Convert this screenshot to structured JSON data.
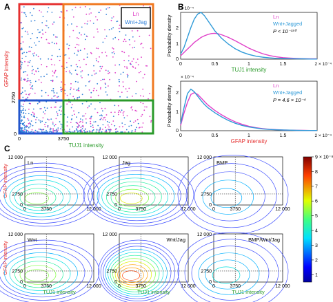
{
  "chart_data": [
    {
      "panel": "A",
      "type": "scatter",
      "xlabel": "TUJ1 intensity",
      "ylabel": "GFAP intensity",
      "xticks": [
        "0",
        "3750"
      ],
      "yticks": [
        "0",
        "2750"
      ],
      "legend": [
        "Ln",
        "Wnt+Jag"
      ],
      "legend_position": "top-right",
      "series_colors": {
        "Ln": "#e040c8",
        "Wnt+Jag": "#2e7fd8"
      },
      "gates": {
        "x": 3750,
        "y": 2750
      },
      "gate_colors": [
        "#e53030",
        "#f07820",
        "#2255cc",
        "#2a9a2a"
      ]
    },
    {
      "panel": "B",
      "type": "line",
      "xlabel": "TUJ1 intensity",
      "ylabel": "Probability density",
      "x_multiplier": "2 × 10⁻⁴",
      "y_multiplier": "× 10⁻⁴",
      "xticks": [
        "0",
        "0.5",
        "1",
        "1.5"
      ],
      "yticks": [
        "0",
        "1",
        "2"
      ],
      "ylim": [
        0,
        2.8
      ],
      "legend": [
        "Ln",
        "Wnt+Jagged"
      ],
      "pvalue": "P < 10⁻³³⁰",
      "series": [
        {
          "name": "Ln",
          "color": "#e040c8",
          "x": [
            0,
            0.05,
            0.1,
            0.15,
            0.2,
            0.25,
            0.3,
            0.35,
            0.4,
            0.45,
            0.5,
            0.55,
            0.6,
            0.7,
            0.8,
            0.9,
            1.0,
            1.1,
            1.2,
            1.3,
            1.4,
            1.5,
            1.6,
            1.7,
            1.8,
            1.9,
            2.0
          ],
          "values": [
            0.2,
            0.4,
            0.6,
            0.8,
            1.0,
            1.15,
            1.3,
            1.4,
            1.48,
            1.53,
            1.55,
            1.52,
            1.46,
            1.3,
            1.1,
            0.88,
            0.66,
            0.48,
            0.33,
            0.22,
            0.14,
            0.09,
            0.06,
            0.04,
            0.03,
            0.02,
            0.02
          ]
        },
        {
          "name": "Wnt+Jagged",
          "color": "#2e9ad8",
          "x": [
            0,
            0.05,
            0.1,
            0.15,
            0.2,
            0.25,
            0.3,
            0.35,
            0.4,
            0.45,
            0.5,
            0.6,
            0.7,
            0.8,
            0.9,
            1.0,
            1.1,
            1.2,
            1.3,
            1.4,
            1.5,
            1.6,
            1.7,
            1.8,
            1.9,
            2.0
          ],
          "values": [
            0.3,
            0.7,
            1.3,
            1.9,
            2.4,
            2.7,
            2.8,
            2.6,
            2.3,
            2.0,
            1.7,
            1.25,
            0.9,
            0.62,
            0.42,
            0.28,
            0.18,
            0.12,
            0.08,
            0.05,
            0.04,
            0.03,
            0.02,
            0.02,
            0.01,
            0.01
          ]
        }
      ]
    },
    {
      "panel": "B",
      "type": "line",
      "xlabel": "GFAP intensity",
      "ylabel": "Probability density",
      "x_multiplier": "2 × 10⁻⁴",
      "y_multiplier": "× 10⁻⁴",
      "xticks": [
        "0",
        "0.5",
        "1",
        "1.5"
      ],
      "yticks": [
        "0",
        "1",
        "2"
      ],
      "ylim": [
        0,
        2.6
      ],
      "legend": [
        "Ln",
        "Wnt+Jagged"
      ],
      "pvalue": "P = 4.6 × 10⁻⁴",
      "series": [
        {
          "name": "Ln",
          "color": "#e040c8",
          "x": [
            0,
            0.05,
            0.1,
            0.15,
            0.2,
            0.25,
            0.3,
            0.35,
            0.4,
            0.5,
            0.6,
            0.7,
            0.8,
            0.9,
            1.0,
            1.1,
            1.2,
            1.3,
            1.4,
            1.5,
            1.6,
            1.7,
            1.8,
            1.9,
            2.0
          ],
          "values": [
            0.3,
            1.0,
            1.6,
            2.05,
            2.15,
            2.05,
            1.85,
            1.65,
            1.45,
            1.15,
            0.9,
            0.68,
            0.5,
            0.36,
            0.25,
            0.17,
            0.12,
            0.08,
            0.06,
            0.04,
            0.03,
            0.02,
            0.02,
            0.01,
            0.01
          ]
        },
        {
          "name": "Wnt+Jagged",
          "color": "#2e9ad8",
          "x": [
            0,
            0.05,
            0.1,
            0.15,
            0.2,
            0.25,
            0.3,
            0.35,
            0.4,
            0.5,
            0.6,
            0.7,
            0.8,
            0.9,
            1.0,
            1.1,
            1.2,
            1.3,
            1.4,
            1.5,
            1.6,
            1.7,
            1.8,
            1.9,
            2.0
          ],
          "values": [
            0.4,
            1.3,
            2.1,
            2.35,
            2.2,
            1.95,
            1.7,
            1.48,
            1.3,
            1.02,
            0.78,
            0.58,
            0.42,
            0.3,
            0.21,
            0.15,
            0.1,
            0.07,
            0.05,
            0.04,
            0.03,
            0.02,
            0.01,
            0.01,
            0.01
          ]
        }
      ]
    },
    {
      "panel": "C",
      "type": "heatmap",
      "subtype": "contour",
      "xlabel": "TUJ1 intensity",
      "ylabel": "GFAP intensity",
      "xticks": [
        "0",
        "3750",
        "12 000"
      ],
      "yticks": [
        "0",
        "2750",
        "12 000"
      ],
      "gates": {
        "x": 3750,
        "y": 2750
      },
      "colorbar_ticks": [
        "1",
        "2",
        "3",
        "4",
        "5",
        "6",
        "7",
        "8",
        "9 × 10⁻⁸"
      ],
      "colorbar_range": [
        0.5,
        9
      ],
      "panels": [
        {
          "name": "Ln",
          "peak": 5.5
        },
        {
          "name": "Jag",
          "peak": 6.5
        },
        {
          "name": "BMP",
          "peak": 3.0
        },
        {
          "name": "Wnt",
          "peak": 6.0
        },
        {
          "name": "Wnt/Jag",
          "peak": 9.0
        },
        {
          "name": "BMP/Wnt/Jag",
          "peak": 3.5
        }
      ]
    }
  ],
  "labels": {
    "a": "A",
    "b": "B",
    "c": "C"
  }
}
